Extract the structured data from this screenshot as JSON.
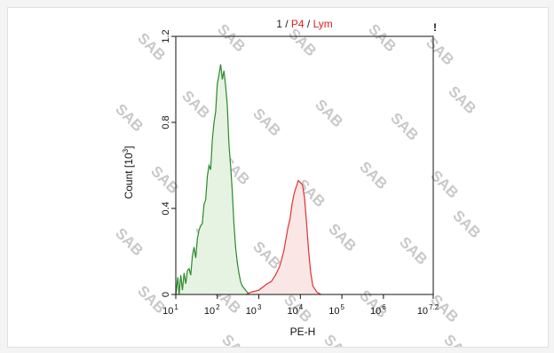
{
  "chart_data": {
    "type": "area",
    "title_parts": [
      {
        "text": "1 / ",
        "color": "#222222"
      },
      {
        "text": "P4",
        "color": "#e02020"
      },
      {
        "text": " / ",
        "color": "#222222"
      },
      {
        "text": "Lym",
        "color": "#e02020"
      }
    ],
    "corner_mark": "!",
    "xlabel": "PE-H",
    "ylabel": "Count",
    "ylabel_exp": "[10",
    "ylabel_exp_sup": "3",
    "ylabel_exp_close": "]",
    "x_scale": "log",
    "xlim": [
      1,
      7.2
    ],
    "ylim": [
      0,
      1.2
    ],
    "y_ticks": [
      "0",
      "0.4",
      "0.8",
      "1.2"
    ],
    "x_ticks": [
      {
        "base": "10",
        "exp": "1"
      },
      {
        "base": "10",
        "exp": "2"
      },
      {
        "base": "10",
        "exp": "3"
      },
      {
        "base": "10",
        "exp": "4"
      },
      {
        "base": "10",
        "exp": "5"
      },
      {
        "base": "10",
        "exp": "6"
      },
      {
        "base": "10",
        "exp": "7.2"
      }
    ],
    "watermark": "SAB",
    "series": [
      {
        "color": "#2a8a2a",
        "fill": "#e6f2e2",
        "x": [
          1.0,
          1.05,
          1.08,
          1.12,
          1.16,
          1.2,
          1.24,
          1.28,
          1.32,
          1.36,
          1.4,
          1.44,
          1.48,
          1.52,
          1.56,
          1.6,
          1.64,
          1.68,
          1.72,
          1.76,
          1.8,
          1.84,
          1.88,
          1.92,
          1.96,
          2.0,
          2.04,
          2.08,
          2.12,
          2.16,
          2.2,
          2.24,
          2.28,
          2.32,
          2.36,
          2.4,
          2.44,
          2.48,
          2.52,
          2.56,
          2.6,
          2.64,
          2.68,
          2.72,
          2.76,
          2.8
        ],
        "y": [
          0.0,
          0.08,
          0.0,
          0.09,
          0.02,
          0.1,
          0.05,
          0.11,
          0.12,
          0.09,
          0.18,
          0.22,
          0.17,
          0.26,
          0.3,
          0.32,
          0.33,
          0.42,
          0.44,
          0.55,
          0.6,
          0.58,
          0.72,
          0.8,
          0.85,
          0.98,
          1.02,
          1.07,
          1.0,
          1.04,
          0.97,
          0.88,
          0.7,
          0.6,
          0.48,
          0.33,
          0.22,
          0.15,
          0.1,
          0.06,
          0.04,
          0.03,
          0.02,
          0.01,
          0.005,
          0.0
        ]
      },
      {
        "color": "#e03030",
        "fill": "#fbe6e6",
        "x": [
          2.7,
          2.8,
          3.0,
          3.2,
          3.3,
          3.4,
          3.5,
          3.6,
          3.7,
          3.75,
          3.8,
          3.85,
          3.9,
          3.95,
          4.0,
          4.05,
          4.1,
          4.15,
          4.2,
          4.25,
          4.3,
          4.4,
          4.5
        ],
        "y": [
          0.0,
          0.01,
          0.02,
          0.05,
          0.06,
          0.09,
          0.13,
          0.2,
          0.31,
          0.35,
          0.42,
          0.47,
          0.5,
          0.53,
          0.52,
          0.51,
          0.45,
          0.33,
          0.2,
          0.1,
          0.04,
          0.01,
          0.0
        ]
      }
    ]
  }
}
